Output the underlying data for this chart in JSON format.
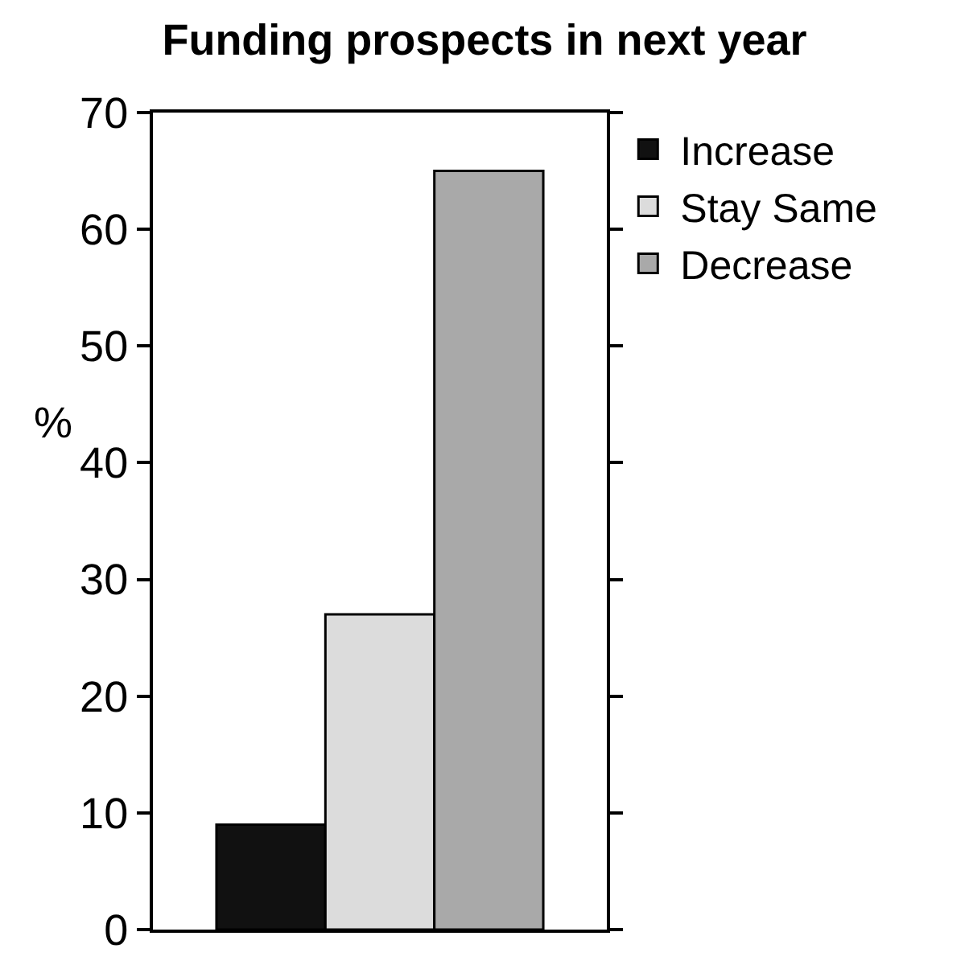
{
  "chart_data": {
    "type": "bar",
    "title": "Funding prospects in next year",
    "ylabel": "%",
    "categories": [
      null
    ],
    "series": [
      {
        "name": "Increase",
        "color": "#111111",
        "values": [
          9
        ]
      },
      {
        "name": "Stay Same",
        "color": "#dcdcdc",
        "values": [
          27
        ]
      },
      {
        "name": "Decrease",
        "color": "#a9a9a9",
        "values": [
          65
        ]
      }
    ],
    "ylim": [
      0,
      70
    ],
    "yticks": [
      0,
      10,
      20,
      30,
      40,
      50,
      60,
      70
    ],
    "legend": "top right"
  }
}
